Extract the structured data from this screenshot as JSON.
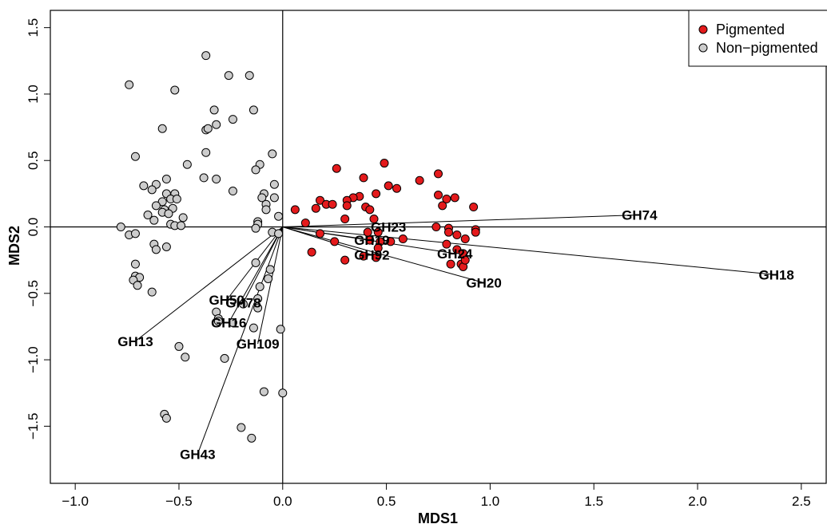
{
  "chart_data": {
    "type": "scatter",
    "xlabel": "MDS1",
    "ylabel": "MDS2",
    "xlim": [
      -1.12,
      2.62
    ],
    "ylim": [
      -1.93,
      1.63
    ],
    "x_ticks": [
      -1.0,
      -0.5,
      0.0,
      0.5,
      1.0,
      1.5,
      2.0,
      2.5
    ],
    "x_tick_labels": [
      "−1.0",
      "−0.5",
      "0.0",
      "0.5",
      "1.0",
      "1.5",
      "2.0",
      "2.5"
    ],
    "y_ticks": [
      -1.5,
      -1.0,
      -0.5,
      0.0,
      0.5,
      1.0,
      1.5
    ],
    "y_tick_labels": [
      "−1.5",
      "−1.0",
      "−0.5",
      "0.0",
      "0.5",
      "1.0",
      "1.5"
    ],
    "reference_lines": {
      "x": 0,
      "y": 0
    },
    "legend": {
      "placement": "top-right",
      "entries": [
        {
          "label": "Pigmented",
          "color": "#e41a1c"
        },
        {
          "label": "Non−pigmented",
          "color": "#cccccc"
        }
      ]
    },
    "series": [
      {
        "name": "Pigmented",
        "color": "#e41a1c",
        "points": [
          [
            0.26,
            0.44
          ],
          [
            0.49,
            0.48
          ],
          [
            0.75,
            0.4
          ],
          [
            0.39,
            0.37
          ],
          [
            0.66,
            0.35
          ],
          [
            0.51,
            0.31
          ],
          [
            0.55,
            0.29
          ],
          [
            0.75,
            0.24
          ],
          [
            0.45,
            0.25
          ],
          [
            0.37,
            0.23
          ],
          [
            0.34,
            0.22
          ],
          [
            0.79,
            0.21
          ],
          [
            0.83,
            0.22
          ],
          [
            0.31,
            0.2
          ],
          [
            0.18,
            0.2
          ],
          [
            0.21,
            0.17
          ],
          [
            0.24,
            0.17
          ],
          [
            0.31,
            0.16
          ],
          [
            0.4,
            0.15
          ],
          [
            0.42,
            0.13
          ],
          [
            0.77,
            0.16
          ],
          [
            0.92,
            0.15
          ],
          [
            0.06,
            0.13
          ],
          [
            0.16,
            0.14
          ],
          [
            0.11,
            0.03
          ],
          [
            0.3,
            0.06
          ],
          [
            0.44,
            0.06
          ],
          [
            0.74,
            0.0
          ],
          [
            0.8,
            -0.01
          ],
          [
            0.93,
            -0.02
          ],
          [
            0.93,
            -0.04
          ],
          [
            0.18,
            -0.05
          ],
          [
            0.41,
            -0.04
          ],
          [
            0.46,
            -0.04
          ],
          [
            0.84,
            -0.06
          ],
          [
            0.8,
            -0.04
          ],
          [
            0.88,
            -0.09
          ],
          [
            0.25,
            -0.11
          ],
          [
            0.42,
            -0.1
          ],
          [
            0.47,
            -0.11
          ],
          [
            0.79,
            -0.13
          ],
          [
            0.84,
            -0.17
          ],
          [
            0.87,
            -0.2
          ],
          [
            0.46,
            -0.16
          ],
          [
            0.14,
            -0.19
          ],
          [
            0.39,
            -0.22
          ],
          [
            0.45,
            -0.23
          ],
          [
            0.3,
            -0.25
          ],
          [
            0.81,
            -0.28
          ],
          [
            0.86,
            -0.28
          ],
          [
            0.87,
            -0.3
          ],
          [
            0.88,
            -0.25
          ],
          [
            0.58,
            -0.09
          ],
          [
            0.52,
            -0.11
          ]
        ]
      },
      {
        "name": "Non−pigmented",
        "color": "#cccccc",
        "points": [
          [
            -0.37,
            1.29
          ],
          [
            -0.74,
            1.07
          ],
          [
            -0.52,
            1.03
          ],
          [
            -0.26,
            1.14
          ],
          [
            -0.16,
            1.14
          ],
          [
            -0.14,
            0.88
          ],
          [
            -0.33,
            0.88
          ],
          [
            -0.24,
            0.81
          ],
          [
            -0.32,
            0.77
          ],
          [
            -0.37,
            0.73
          ],
          [
            -0.36,
            0.74
          ],
          [
            -0.58,
            0.74
          ],
          [
            -0.37,
            0.56
          ],
          [
            -0.71,
            0.53
          ],
          [
            -0.05,
            0.55
          ],
          [
            -0.46,
            0.47
          ],
          [
            -0.11,
            0.47
          ],
          [
            -0.13,
            0.43
          ],
          [
            -0.38,
            0.37
          ],
          [
            -0.32,
            0.36
          ],
          [
            -0.56,
            0.36
          ],
          [
            -0.04,
            0.32
          ],
          [
            -0.61,
            0.32
          ],
          [
            -0.67,
            0.31
          ],
          [
            -0.63,
            0.28
          ],
          [
            -0.24,
            0.27
          ],
          [
            -0.56,
            0.25
          ],
          [
            -0.52,
            0.25
          ],
          [
            -0.09,
            0.25
          ],
          [
            -0.54,
            0.21
          ],
          [
            -0.1,
            0.22
          ],
          [
            -0.04,
            0.22
          ],
          [
            -0.51,
            0.21
          ],
          [
            -0.58,
            0.19
          ],
          [
            -0.08,
            0.17
          ],
          [
            -0.61,
            0.16
          ],
          [
            -0.53,
            0.14
          ],
          [
            -0.57,
            0.13
          ],
          [
            -0.08,
            0.13
          ],
          [
            -0.58,
            0.11
          ],
          [
            -0.55,
            0.1
          ],
          [
            -0.65,
            0.09
          ],
          [
            -0.02,
            0.08
          ],
          [
            -0.48,
            0.07
          ],
          [
            -0.62,
            0.05
          ],
          [
            -0.12,
            0.04
          ],
          [
            -0.12,
            0.02
          ],
          [
            -0.54,
            0.02
          ],
          [
            -0.52,
            0.01
          ],
          [
            -0.49,
            0.01
          ],
          [
            -0.78,
            0.0
          ],
          [
            -0.13,
            -0.01
          ],
          [
            -0.05,
            -0.04
          ],
          [
            -0.74,
            -0.06
          ],
          [
            -0.71,
            -0.05
          ],
          [
            -0.02,
            -0.05
          ],
          [
            -0.62,
            -0.13
          ],
          [
            -0.56,
            -0.15
          ],
          [
            -0.61,
            -0.17
          ],
          [
            -0.13,
            -0.27
          ],
          [
            -0.71,
            -0.28
          ],
          [
            -0.06,
            -0.32
          ],
          [
            -0.71,
            -0.37
          ],
          [
            -0.69,
            -0.38
          ],
          [
            -0.72,
            -0.4
          ],
          [
            -0.07,
            -0.39
          ],
          [
            -0.7,
            -0.44
          ],
          [
            -0.11,
            -0.45
          ],
          [
            -0.63,
            -0.49
          ],
          [
            -0.12,
            -0.54
          ],
          [
            -0.19,
            -0.58
          ],
          [
            -0.12,
            -0.61
          ],
          [
            -0.32,
            -0.64
          ],
          [
            -0.31,
            -0.69
          ],
          [
            -0.31,
            -0.71
          ],
          [
            -0.24,
            -0.72
          ],
          [
            -0.14,
            -0.76
          ],
          [
            -0.01,
            -0.77
          ],
          [
            -0.5,
            -0.9
          ],
          [
            -0.47,
            -0.98
          ],
          [
            -0.28,
            -0.99
          ],
          [
            -0.09,
            -1.24
          ],
          [
            0.0,
            -1.25
          ],
          [
            -0.57,
            -1.41
          ],
          [
            -0.56,
            -1.44
          ],
          [
            -0.2,
            -1.51
          ],
          [
            -0.15,
            -1.59
          ]
        ]
      }
    ],
    "vectors": [
      {
        "label": "GH74",
        "x": 1.72,
        "y": 0.09
      },
      {
        "label": "GH18",
        "x": 2.38,
        "y": -0.36
      },
      {
        "label": "GH20",
        "x": 0.97,
        "y": -0.42
      },
      {
        "label": "GH24",
        "x": 0.83,
        "y": -0.2
      },
      {
        "label": "GH23",
        "x": 0.51,
        "y": 0.0
      },
      {
        "label": "GH19",
        "x": 0.43,
        "y": -0.1
      },
      {
        "label": "GH92",
        "x": 0.43,
        "y": -0.21
      },
      {
        "label": "GH13",
        "x": -0.71,
        "y": -0.86
      },
      {
        "label": "GH50",
        "x": -0.27,
        "y": -0.55
      },
      {
        "label": "GH78",
        "x": -0.19,
        "y": -0.57
      },
      {
        "label": "GH16",
        "x": -0.26,
        "y": -0.72
      },
      {
        "label": "GH109",
        "x": -0.12,
        "y": -0.88
      },
      {
        "label": "GH43",
        "x": -0.41,
        "y": -1.71
      }
    ]
  }
}
